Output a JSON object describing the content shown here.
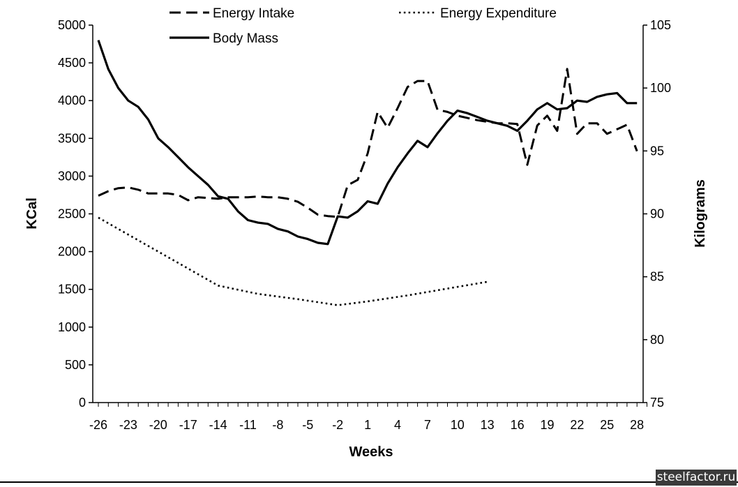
{
  "chart_data": {
    "type": "line",
    "title": "",
    "xlabel": "Weeks",
    "ylabel": "KCal",
    "y2label": "Kilograms",
    "xlim": [
      -26,
      29
    ],
    "ylim": [
      0,
      5000
    ],
    "y2lim": [
      75,
      105
    ],
    "x_ticks": [
      -26,
      -23,
      -20,
      -17,
      -14,
      -11,
      -8,
      -5,
      -2,
      1,
      4,
      7,
      10,
      13,
      16,
      19,
      22,
      25,
      28
    ],
    "y_ticks": [
      0,
      500,
      1000,
      1500,
      2000,
      2500,
      3000,
      3500,
      4000,
      4500,
      5000
    ],
    "y2_ticks": [
      75,
      80,
      85,
      90,
      95,
      100,
      105
    ],
    "legend_position": "top",
    "series": [
      {
        "name": "Energy Intake",
        "axis": "left",
        "style": "dashed",
        "points": [
          [
            -26,
            2740
          ],
          [
            -25,
            2800
          ],
          [
            -24,
            2840
          ],
          [
            -23,
            2850
          ],
          [
            -22,
            2820
          ],
          [
            -21,
            2770
          ],
          [
            -20,
            2770
          ],
          [
            -19,
            2770
          ],
          [
            -18,
            2750
          ],
          [
            -17,
            2680
          ],
          [
            -16,
            2720
          ],
          [
            -15,
            2710
          ],
          [
            -14,
            2700
          ],
          [
            -13,
            2720
          ],
          [
            -12,
            2720
          ],
          [
            -11,
            2720
          ],
          [
            -10,
            2730
          ],
          [
            -9,
            2720
          ],
          [
            -8,
            2720
          ],
          [
            -7,
            2700
          ],
          [
            -6,
            2660
          ],
          [
            -5,
            2580
          ],
          [
            -4,
            2490
          ],
          [
            -3,
            2470
          ],
          [
            -2,
            2460
          ],
          [
            -1,
            2880
          ],
          [
            0,
            2950
          ],
          [
            1,
            3300
          ],
          [
            2,
            3850
          ],
          [
            3,
            3640
          ],
          [
            4,
            3900
          ],
          [
            5,
            4180
          ],
          [
            6,
            4260
          ],
          [
            7,
            4260
          ],
          [
            8,
            3880
          ],
          [
            9,
            3850
          ],
          [
            10,
            3800
          ],
          [
            11,
            3770
          ],
          [
            12,
            3740
          ],
          [
            13,
            3720
          ],
          [
            14,
            3700
          ],
          [
            15,
            3700
          ],
          [
            16,
            3690
          ],
          [
            17,
            3150
          ],
          [
            18,
            3670
          ],
          [
            19,
            3800
          ],
          [
            20,
            3600
          ],
          [
            21,
            4420
          ],
          [
            22,
            3560
          ],
          [
            23,
            3700
          ],
          [
            24,
            3700
          ],
          [
            25,
            3560
          ],
          [
            26,
            3620
          ],
          [
            27,
            3680
          ],
          [
            28,
            3330
          ]
        ]
      },
      {
        "name": "Energy Expenditure",
        "axis": "left",
        "style": "dotted",
        "points": [
          [
            -26,
            2450
          ],
          [
            -22,
            2150
          ],
          [
            -18,
            1850
          ],
          [
            -14,
            1550
          ],
          [
            -10,
            1440
          ],
          [
            -6,
            1370
          ],
          [
            -2,
            1290
          ],
          [
            1,
            1340
          ],
          [
            5,
            1420
          ],
          [
            9,
            1510
          ],
          [
            13,
            1600
          ]
        ]
      },
      {
        "name": "Body Mass",
        "axis": "right",
        "style": "solid",
        "points": [
          [
            -26,
            103.8
          ],
          [
            -25,
            101.5
          ],
          [
            -24,
            100.0
          ],
          [
            -23,
            99.0
          ],
          [
            -22,
            98.5
          ],
          [
            -21,
            97.5
          ],
          [
            -20,
            96.0
          ],
          [
            -19,
            95.3
          ],
          [
            -18,
            94.5
          ],
          [
            -17,
            93.7
          ],
          [
            -16,
            93.0
          ],
          [
            -15,
            92.3
          ],
          [
            -14,
            91.4
          ],
          [
            -13,
            91.2
          ],
          [
            -12,
            90.2
          ],
          [
            -11,
            89.5
          ],
          [
            -10,
            89.3
          ],
          [
            -9,
            89.2
          ],
          [
            -8,
            88.8
          ],
          [
            -7,
            88.6
          ],
          [
            -6,
            88.2
          ],
          [
            -5,
            88.0
          ],
          [
            -4,
            87.7
          ],
          [
            -3,
            87.6
          ],
          [
            -2,
            89.8
          ],
          [
            -1,
            89.7
          ],
          [
            0,
            90.2
          ],
          [
            1,
            91.0
          ],
          [
            2,
            90.8
          ],
          [
            3,
            92.4
          ],
          [
            4,
            93.7
          ],
          [
            5,
            94.8
          ],
          [
            6,
            95.8
          ],
          [
            7,
            95.3
          ],
          [
            8,
            96.4
          ],
          [
            9,
            97.4
          ],
          [
            10,
            98.2
          ],
          [
            11,
            98.0
          ],
          [
            12,
            97.7
          ],
          [
            13,
            97.4
          ],
          [
            14,
            97.2
          ],
          [
            15,
            97.0
          ],
          [
            16,
            96.6
          ],
          [
            17,
            97.4
          ],
          [
            18,
            98.3
          ],
          [
            19,
            98.8
          ],
          [
            20,
            98.3
          ],
          [
            21,
            98.4
          ],
          [
            22,
            99.0
          ],
          [
            23,
            98.9
          ],
          [
            24,
            99.3
          ],
          [
            25,
            99.5
          ],
          [
            26,
            99.6
          ],
          [
            27,
            98.8
          ],
          [
            28,
            98.8
          ]
        ]
      }
    ]
  },
  "watermark": "steelfactor.ru"
}
